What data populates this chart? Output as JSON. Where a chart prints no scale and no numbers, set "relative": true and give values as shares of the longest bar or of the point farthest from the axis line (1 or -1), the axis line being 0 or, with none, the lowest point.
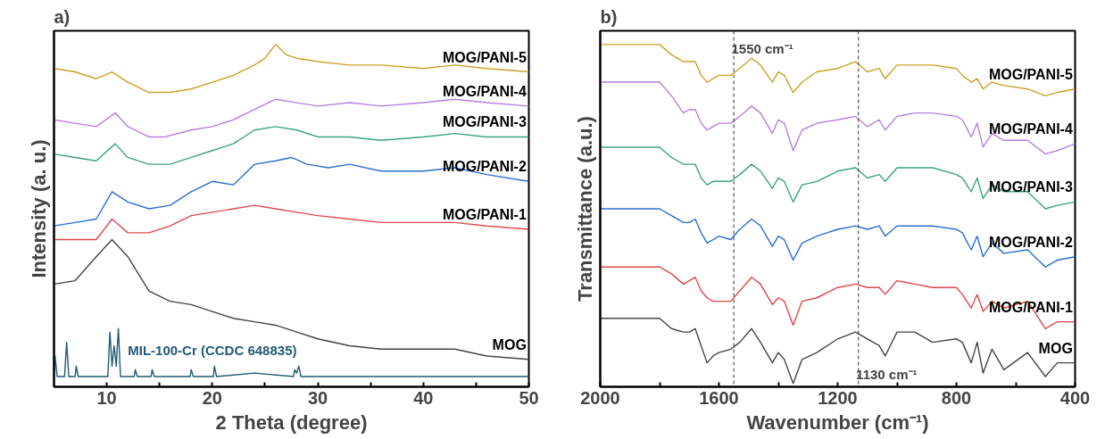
{
  "chart_data": [
    {
      "type": "line",
      "title": "a)",
      "xlabel": "2 Theta (degree)",
      "ylabel": "Intensity (a. u.)",
      "relative": true,
      "grid": false,
      "line_style": "solid",
      "xlim": [
        5,
        50
      ],
      "xticks": [
        10,
        {
          "value": 15,
          "label": null
        },
        20,
        {
          "value": 25,
          "label": null
        },
        30,
        {
          "value": 35,
          "label": null
        },
        40,
        {
          "value": 45,
          "label": null
        },
        50
      ],
      "annotations": [
        "MIL-100-Cr (CCDC 648835)"
      ],
      "series": [
        {
          "name": "MOG/PANI-5",
          "color": "#c9a227",
          "x": [
            5,
            7,
            9,
            10.5,
            12,
            14,
            16,
            18,
            20,
            22,
            24,
            25,
            26,
            27,
            28,
            30,
            33,
            36,
            40,
            43,
            46,
            50
          ],
          "values": [
            0.93,
            0.92,
            0.9,
            0.92,
            0.89,
            0.86,
            0.86,
            0.87,
            0.89,
            0.91,
            0.94,
            0.96,
            1.0,
            0.97,
            0.96,
            0.95,
            0.94,
            0.94,
            0.93,
            0.94,
            0.93,
            0.92
          ]
        },
        {
          "name": "MOG/PANI-4",
          "color": "#b77fe0",
          "x": [
            5,
            7,
            9,
            10.8,
            12,
            14,
            15.5,
            18,
            20,
            22,
            24,
            26,
            28,
            30,
            33,
            36,
            40,
            43,
            46,
            50
          ],
          "values": [
            0.78,
            0.77,
            0.76,
            0.8,
            0.76,
            0.73,
            0.73,
            0.75,
            0.76,
            0.78,
            0.81,
            0.84,
            0.83,
            0.82,
            0.83,
            0.82,
            0.83,
            0.84,
            0.83,
            0.82
          ]
        },
        {
          "name": "MOG/PANI-3",
          "color": "#3aa57a",
          "x": [
            5,
            7,
            9,
            10.8,
            12,
            14,
            16,
            18,
            20,
            22,
            24,
            26,
            28,
            30,
            33,
            36,
            40,
            43,
            46,
            50
          ],
          "values": [
            0.68,
            0.67,
            0.66,
            0.71,
            0.67,
            0.65,
            0.65,
            0.67,
            0.69,
            0.71,
            0.75,
            0.76,
            0.75,
            0.73,
            0.73,
            0.72,
            0.73,
            0.74,
            0.73,
            0.73
          ]
        },
        {
          "name": "MOG/PANI-2",
          "color": "#2a6fd1",
          "x": [
            5,
            7,
            9,
            10.5,
            12,
            14,
            16,
            18,
            20,
            22,
            23,
            24,
            26,
            27.5,
            29,
            31,
            33,
            36,
            40,
            43,
            46,
            50
          ],
          "values": [
            0.47,
            0.48,
            0.49,
            0.57,
            0.54,
            0.52,
            0.53,
            0.57,
            0.6,
            0.59,
            0.62,
            0.65,
            0.66,
            0.67,
            0.65,
            0.64,
            0.65,
            0.63,
            0.63,
            0.64,
            0.62,
            0.6
          ]
        },
        {
          "name": "MOG/PANI-1",
          "color": "#e0474c",
          "x": [
            5,
            7,
            9,
            10.5,
            12,
            14,
            16,
            18,
            20,
            22,
            24,
            26,
            28,
            30,
            33,
            36,
            40,
            43,
            46,
            50
          ],
          "values": [
            0.43,
            0.43,
            0.43,
            0.49,
            0.45,
            0.45,
            0.47,
            0.5,
            0.51,
            0.52,
            0.53,
            0.52,
            0.51,
            0.5,
            0.49,
            0.48,
            0.48,
            0.48,
            0.47,
            0.46
          ]
        },
        {
          "name": "MOG",
          "color": "#444444",
          "x": [
            5,
            7,
            9,
            10.5,
            12,
            14,
            16,
            18,
            20,
            22,
            24,
            26,
            28,
            30,
            33,
            36,
            40,
            43,
            46,
            50
          ],
          "values": [
            0.3,
            0.31,
            0.38,
            0.43,
            0.38,
            0.28,
            0.25,
            0.24,
            0.22,
            0.2,
            0.19,
            0.18,
            0.16,
            0.14,
            0.12,
            0.11,
            0.11,
            0.11,
            0.09,
            0.08
          ]
        },
        {
          "color": "#1f5a73",
          "x": [
            5,
            5.1,
            5.3,
            6.0,
            6.2,
            6.4,
            7.0,
            7.1,
            7.3,
            10.1,
            10.3,
            10.5,
            10.7,
            10.9,
            11.1,
            11.3,
            12.6,
            12.7,
            12.9,
            14.2,
            14.3,
            14.5,
            17.9,
            18.0,
            18.2,
            20.1,
            20.2,
            20.4,
            24.0,
            27.7,
            27.8,
            28.0,
            28.2,
            28.4,
            43,
            50
          ],
          "values": [
            0.03,
            0.09,
            0.03,
            0.03,
            0.13,
            0.03,
            0.03,
            0.06,
            0.03,
            0.03,
            0.16,
            0.06,
            0.12,
            0.06,
            0.17,
            0.03,
            0.03,
            0.05,
            0.03,
            0.03,
            0.05,
            0.03,
            0.03,
            0.05,
            0.03,
            0.03,
            0.06,
            0.03,
            0.04,
            0.03,
            0.05,
            0.04,
            0.06,
            0.03,
            0.03,
            0.03
          ]
        }
      ]
    },
    {
      "type": "line",
      "title": "b)",
      "xlabel": "Wavenumber (cm⁻¹)",
      "ylabel": "Transmittance (a.u.)",
      "relative": true,
      "grid": false,
      "line_style": "solid",
      "xlim": [
        2000,
        400
      ],
      "xticks": [
        2000,
        {
          "value": 1800,
          "label": null
        },
        1600,
        {
          "value": 1400,
          "label": null
        },
        1200,
        {
          "value": 1000,
          "label": null
        },
        800,
        {
          "value": 600,
          "label": null
        },
        400
      ],
      "ref_lines": [
        {
          "axis": "x",
          "value": 1550,
          "label": "1550 cm⁻¹",
          "line_style": "dashed"
        },
        {
          "axis": "x",
          "value": 1130,
          "label": "1130 cm⁻¹",
          "line_style": "dashed"
        }
      ],
      "x": [
        2000,
        1800,
        1760,
        1720,
        1700,
        1680,
        1660,
        1640,
        1620,
        1600,
        1560,
        1530,
        1490,
        1460,
        1420,
        1400,
        1380,
        1350,
        1320,
        1270,
        1200,
        1140,
        1100,
        1060,
        1040,
        1000,
        940,
        880,
        800,
        780,
        750,
        730,
        710,
        680,
        640,
        560,
        500,
        460,
        400
      ],
      "series": [
        {
          "name": "MOG/PANI-5",
          "color": "#c9a227",
          "values": [
            1.0,
            1.0,
            0.97,
            0.95,
            0.95,
            0.95,
            0.91,
            0.89,
            0.9,
            0.91,
            0.91,
            0.93,
            0.96,
            0.94,
            0.89,
            0.92,
            0.91,
            0.86,
            0.89,
            0.92,
            0.93,
            0.95,
            0.92,
            0.93,
            0.9,
            0.94,
            0.94,
            0.94,
            0.93,
            0.91,
            0.89,
            0.9,
            0.87,
            0.89,
            0.88,
            0.87,
            0.85,
            0.86,
            0.87
          ]
        },
        {
          "name": "MOG/PANI-4",
          "color": "#b77fe0",
          "values": [
            0.89,
            0.89,
            0.85,
            0.8,
            0.81,
            0.81,
            0.77,
            0.75,
            0.76,
            0.77,
            0.77,
            0.79,
            0.82,
            0.8,
            0.74,
            0.78,
            0.77,
            0.69,
            0.75,
            0.77,
            0.78,
            0.79,
            0.76,
            0.78,
            0.75,
            0.79,
            0.8,
            0.8,
            0.79,
            0.78,
            0.73,
            0.77,
            0.7,
            0.74,
            0.72,
            0.72,
            0.68,
            0.69,
            0.71
          ]
        },
        {
          "name": "MOG/PANI-3",
          "color": "#3aa57a",
          "values": [
            0.7,
            0.7,
            0.67,
            0.65,
            0.65,
            0.65,
            0.61,
            0.59,
            0.6,
            0.6,
            0.6,
            0.62,
            0.65,
            0.63,
            0.58,
            0.61,
            0.6,
            0.54,
            0.59,
            0.6,
            0.63,
            0.64,
            0.61,
            0.62,
            0.6,
            0.64,
            0.64,
            0.64,
            0.62,
            0.61,
            0.57,
            0.61,
            0.55,
            0.59,
            0.57,
            0.57,
            0.52,
            0.53,
            0.54
          ]
        },
        {
          "name": "MOG/PANI-2",
          "color": "#2a6fd1",
          "values": [
            0.52,
            0.52,
            0.5,
            0.48,
            0.48,
            0.49,
            0.45,
            0.42,
            0.43,
            0.44,
            0.43,
            0.46,
            0.49,
            0.47,
            0.41,
            0.44,
            0.43,
            0.37,
            0.42,
            0.44,
            0.46,
            0.47,
            0.46,
            0.47,
            0.44,
            0.47,
            0.47,
            0.47,
            0.46,
            0.45,
            0.4,
            0.44,
            0.38,
            0.42,
            0.39,
            0.4,
            0.35,
            0.37,
            0.38
          ]
        },
        {
          "name": "MOG/PANI-1",
          "color": "#e0474c",
          "values": [
            0.35,
            0.35,
            0.33,
            0.3,
            0.31,
            0.32,
            0.28,
            0.26,
            0.25,
            0.25,
            0.25,
            0.28,
            0.32,
            0.3,
            0.24,
            0.26,
            0.25,
            0.18,
            0.25,
            0.26,
            0.29,
            0.3,
            0.29,
            0.29,
            0.27,
            0.31,
            0.3,
            0.29,
            0.29,
            0.27,
            0.23,
            0.27,
            0.22,
            0.25,
            0.23,
            0.25,
            0.17,
            0.19,
            0.19
          ]
        },
        {
          "name": "MOG",
          "color": "#444444",
          "values": [
            0.2,
            0.2,
            0.17,
            0.16,
            0.16,
            0.17,
            0.12,
            0.07,
            0.09,
            0.1,
            0.11,
            0.13,
            0.17,
            0.13,
            0.07,
            0.1,
            0.08,
            0.01,
            0.08,
            0.1,
            0.14,
            0.16,
            0.14,
            0.12,
            0.09,
            0.16,
            0.16,
            0.13,
            0.14,
            0.13,
            0.07,
            0.13,
            0.04,
            0.11,
            0.05,
            0.1,
            0.03,
            0.07,
            0.07
          ]
        }
      ]
    }
  ]
}
